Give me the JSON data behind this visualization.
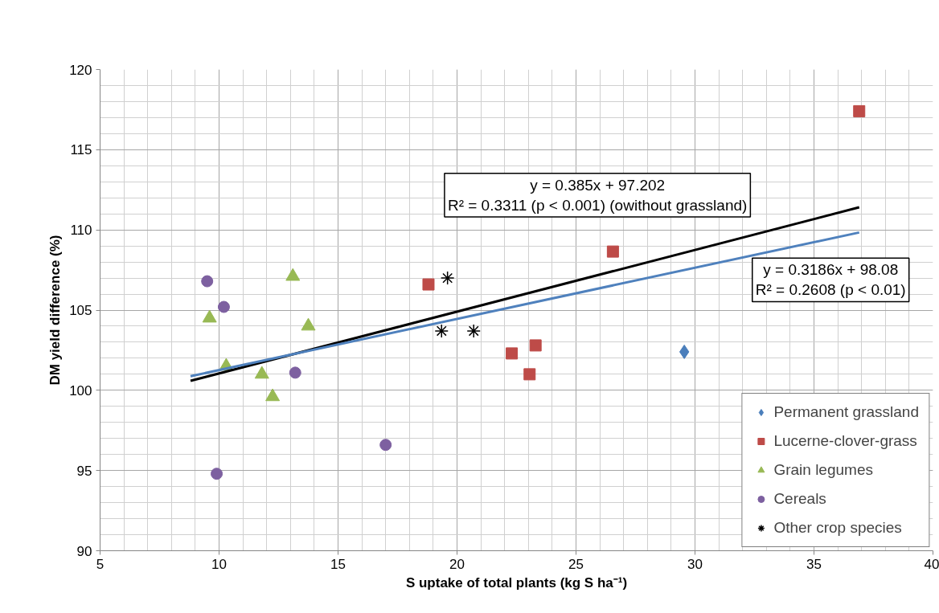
{
  "chart_data": {
    "type": "scatter",
    "xlabel": "S uptake of total plants (kg S ha⁻¹)",
    "ylabel": "DM yield difference (%)",
    "xlim": [
      5,
      40
    ],
    "xticks": [
      5,
      10,
      15,
      20,
      25,
      30,
      35,
      40
    ],
    "ylim": [
      90,
      120
    ],
    "yticks": [
      90,
      95,
      100,
      105,
      110,
      115,
      120
    ],
    "grid": true,
    "legend": "bottom right",
    "series": [
      {
        "name": "Permanent grassland",
        "color": "#4a7ebb",
        "marker": "diamond",
        "x": [
          29.55
        ],
        "values": [
          102.4
        ]
      },
      {
        "name": "Lucerne-clover-grass",
        "color": "#be4b48",
        "marker": "square",
        "x": [
          18.8,
          26.55,
          22.3,
          23.3,
          23.05,
          36.9
        ],
        "values": [
          106.6,
          108.65,
          102.3,
          102.8,
          101.0,
          117.4
        ]
      },
      {
        "name": "Grain legumes",
        "color": "#98b954",
        "marker": "triangle",
        "x": [
          13.1,
          9.6,
          13.75,
          10.3,
          11.8,
          12.25
        ],
        "values": [
          107.1,
          104.5,
          104.0,
          101.5,
          101.0,
          99.6
        ]
      },
      {
        "name": "Cereals",
        "color": "#7d60a0",
        "marker": "circle",
        "x": [
          9.5,
          10.2,
          13.2,
          17.0,
          9.9
        ],
        "values": [
          106.8,
          105.2,
          101.1,
          96.6,
          94.8
        ]
      },
      {
        "name": "Other crop species",
        "color": "#000000",
        "marker": "cross",
        "x": [
          19.6,
          19.35,
          20.7
        ],
        "values": [
          107.0,
          103.7,
          103.7
        ]
      },
      {
        "type": "line",
        "color": "#000000",
        "x": [
          8.8,
          36.9
        ],
        "values": [
          100.59,
          111.41
        ]
      },
      {
        "type": "line",
        "color": "#4f81bd",
        "x": [
          8.8,
          36.9
        ],
        "values": [
          100.88,
          109.84
        ]
      }
    ],
    "annotations": [
      "y = 0.385x + 97.202\nR² = 0.3311 (p < 0.001) (owithout grassland)",
      "y = 0.3186x + 98.08\nR² = 0.2608 (p < 0.01)"
    ]
  }
}
